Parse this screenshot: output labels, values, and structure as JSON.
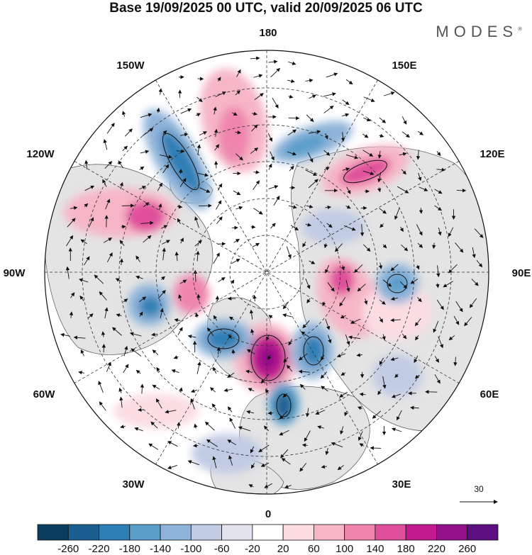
{
  "title": "Base 19/09/2025 00 UTC, valid 20/09/2025 06 UTC",
  "brand": "MODES",
  "brand_mark": "®",
  "longitude_labels": {
    "top": "180",
    "bottom": "0",
    "left": "90W",
    "right": "90E",
    "upper_left": "150W",
    "upper_right": "150E",
    "mid_left_upper": "120W",
    "mid_right_upper": "120E",
    "mid_left_lower": "60W",
    "mid_right_lower": "60E",
    "lower_left": "30W",
    "lower_right": "30E"
  },
  "reference_vector": {
    "label": "30"
  },
  "colorbar": {
    "labels": [
      "-260",
      "-220",
      "-180",
      "-140",
      "-100",
      "-60",
      "-20",
      "20",
      "60",
      "100",
      "140",
      "180",
      "220",
      "260"
    ],
    "colors": [
      "#0b3d5e",
      "#1a5f8f",
      "#2e7fb5",
      "#5a9fcb",
      "#8fb4d9",
      "#c1cbe4",
      "#e4e4f1",
      "#ffffff",
      "#fbdde2",
      "#f6b6c6",
      "#ef85ad",
      "#e04f9b",
      "#c21a8e",
      "#93108a",
      "#5c0f7e"
    ]
  },
  "colors": {
    "land": "#e3e3e3",
    "ocean": "#ffffff",
    "grid": "#333333",
    "coast": "#555555",
    "vector": "#111111"
  }
}
